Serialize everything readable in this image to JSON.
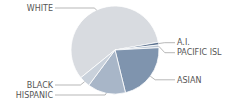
{
  "chart_data": {
    "type": "pie",
    "categories": [
      "WHITE",
      "A.I.",
      "PACIFIC ISL",
      "ASIAN",
      "HISPANIC",
      "BLACK"
    ],
    "values": [
      58,
      1,
      1,
      22,
      14,
      4
    ],
    "colors": [
      "#d8dbe0",
      "#5d7390",
      "#b9c5d3",
      "#7f94ae",
      "#a8b6c8",
      "#c9d1db"
    ]
  }
}
